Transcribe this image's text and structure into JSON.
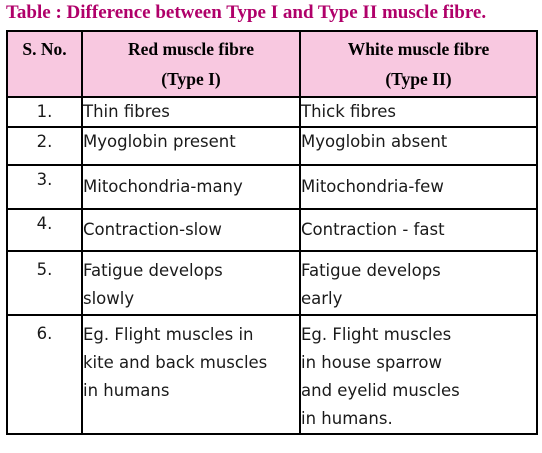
{
  "caption": "Table : Difference between Type I and Type II muscle fibre.",
  "colors": {
    "caption": "#b0006a",
    "header_bg": "#f8c8e0",
    "border": "#000000"
  },
  "table": {
    "headers": {
      "sno": "S. No.",
      "red_line1": "Red muscle fibre",
      "red_line2": "(Type I)",
      "white_line1": "White muscle fibre",
      "white_line2": "(Type II)"
    },
    "rows": [
      {
        "sno": "1.",
        "red": [
          "Thin fibres"
        ],
        "white": [
          "Thick fibres"
        ]
      },
      {
        "sno": "2.",
        "red": [
          "Myoglobin present"
        ],
        "white": [
          "Myoglobin absent"
        ]
      },
      {
        "sno": "3.",
        "red": [
          "Mitochondria-many"
        ],
        "white": [
          "Mitochondria-few"
        ]
      },
      {
        "sno": "4.",
        "red": [
          "Contraction-slow"
        ],
        "white": [
          "Contraction - fast"
        ]
      },
      {
        "sno": "5.",
        "red": [
          "Fatigue develops",
          "slowly"
        ],
        "white": [
          "Fatigue develops",
          "early"
        ]
      },
      {
        "sno": "6.",
        "red": [
          "Eg. Flight muscles in",
          "kite and back muscles",
          "in humans"
        ],
        "white": [
          "Eg. Flight muscles",
          "in house sparrow",
          "and eyelid muscles",
          "in humans."
        ]
      }
    ]
  }
}
